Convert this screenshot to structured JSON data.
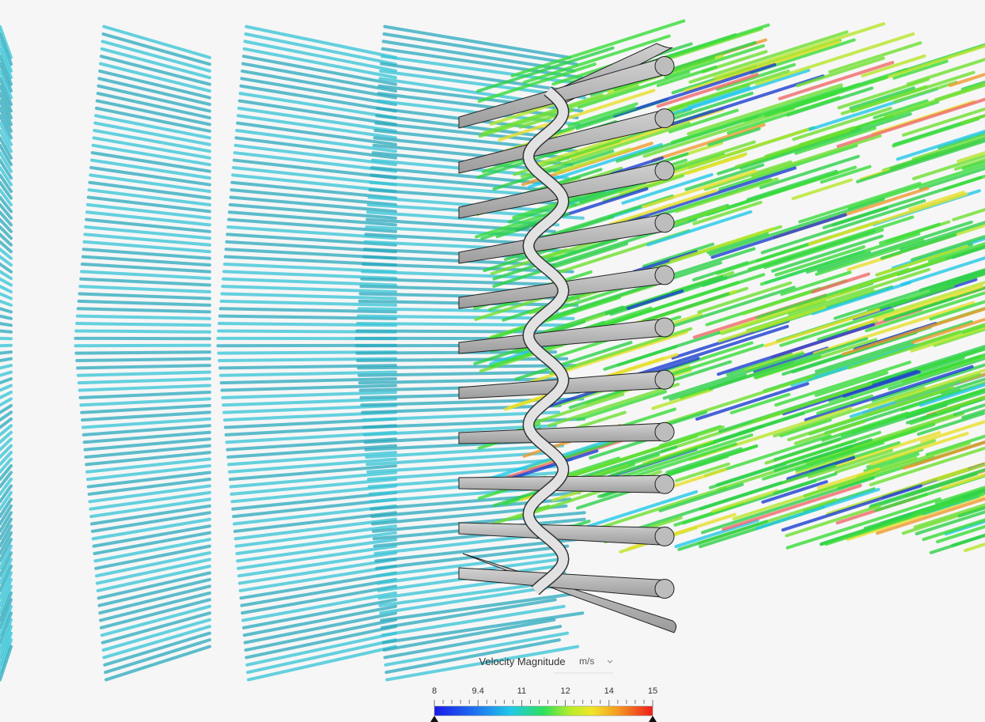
{
  "legend": {
    "title": "Velocity Magnitude",
    "unit": "m/s",
    "ticks": [
      8,
      9.4,
      11,
      12,
      14,
      15
    ]
  }
}
